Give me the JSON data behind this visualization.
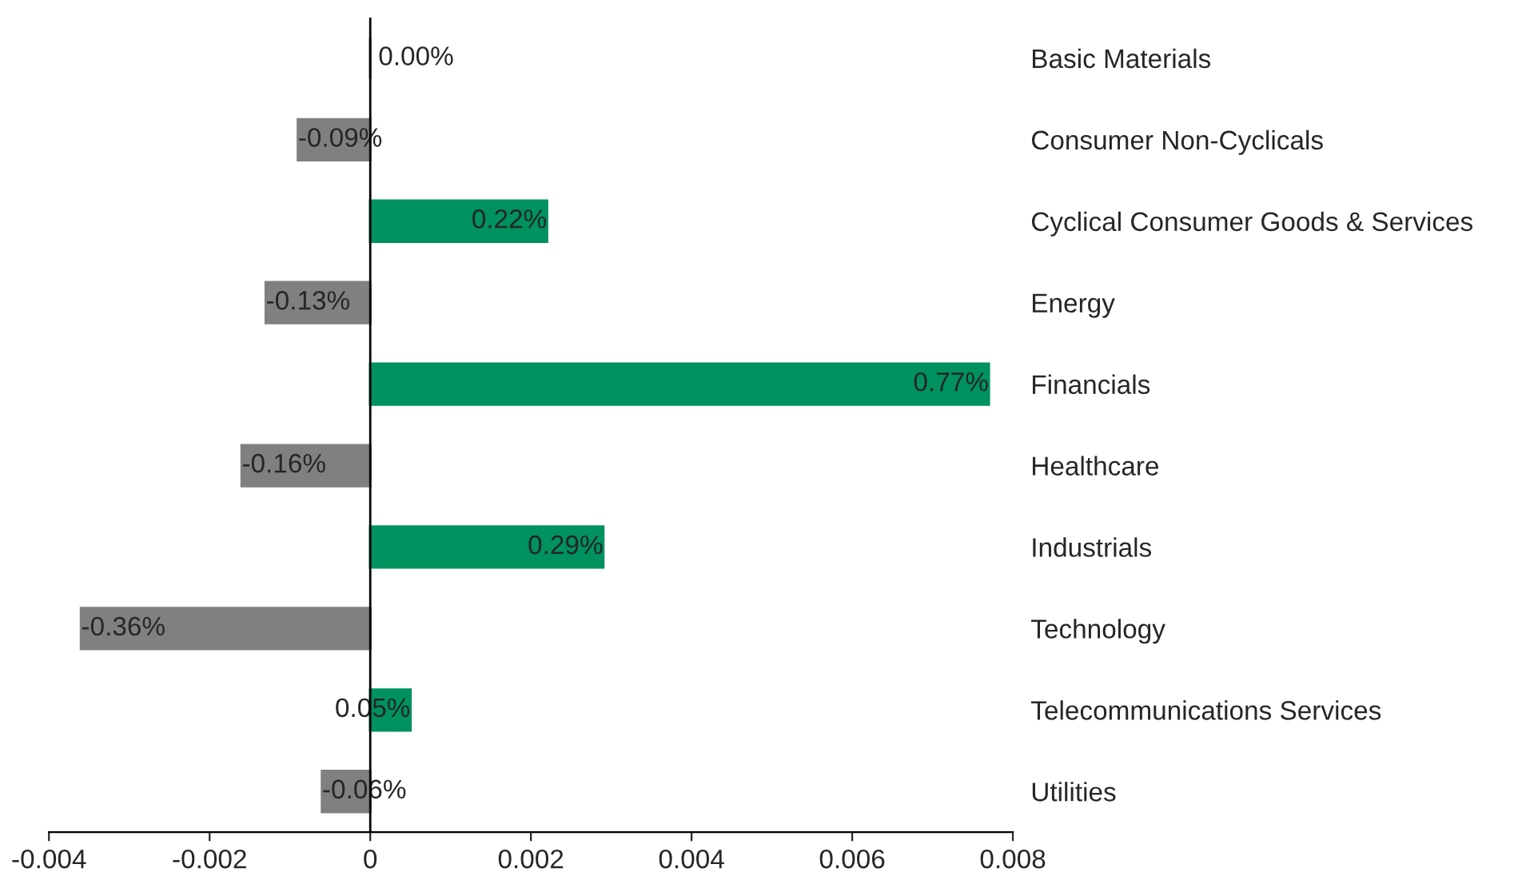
{
  "chart_data": {
    "type": "bar",
    "orientation": "horizontal",
    "categories": [
      "Basic Materials",
      "Consumer Non-Cyclicals",
      "Cyclical Consumer Goods & Services",
      "Energy",
      "Financials",
      "Healthcare",
      "Industrials",
      "Technology",
      "Telecommunications Services",
      "Utilities"
    ],
    "values": [
      0.0,
      -0.0009,
      0.0022,
      -0.0013,
      0.0077,
      -0.0016,
      0.0029,
      -0.0036,
      0.0005,
      -0.0006
    ],
    "value_labels": [
      "0.00%",
      "-0.09%",
      "0.22%",
      "-0.13%",
      "0.77%",
      "-0.16%",
      "0.29%",
      "-0.36%",
      "0.05%",
      "-0.06%"
    ],
    "colors": [
      "#808080",
      "#808080",
      "#00925e",
      "#808080",
      "#00925e",
      "#808080",
      "#00925e",
      "#808080",
      "#00925e",
      "#808080"
    ],
    "xlim": [
      -0.004,
      0.008
    ],
    "xticks": [
      -0.004,
      -0.002,
      0,
      0.002,
      0.004,
      0.006,
      0.008
    ],
    "ref_lines": [
      {
        "axis": "x",
        "value": 0,
        "color": "#000000"
      }
    ],
    "grid": false,
    "legend": false
  }
}
